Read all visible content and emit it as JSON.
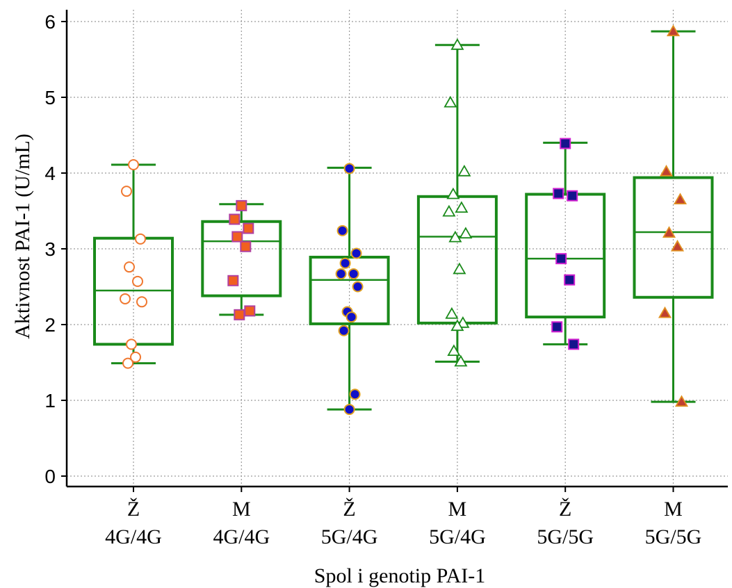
{
  "chart_data": {
    "type": "box",
    "xlabel": "Spol i genotip PAI-1",
    "ylabel": "Aktivnost PAI-1 (U/mL)",
    "ylim": [
      0,
      6
    ],
    "yticks": [
      "0",
      "1",
      "2",
      "3",
      "4",
      "5",
      "6"
    ],
    "grid": true,
    "box_color": "#1a8a1a",
    "groups": [
      {
        "sex": "Ž",
        "genotype": "4G/4G",
        "marker": "circle",
        "fill": "#ffffff",
        "stroke": "#f07830",
        "min": 1.49,
        "q1": 1.74,
        "median": 2.45,
        "q3": 3.14,
        "max": 4.11,
        "points": [
          4.11,
          3.76,
          3.13,
          2.76,
          2.57,
          2.34,
          2.3,
          1.74,
          1.57,
          1.49
        ]
      },
      {
        "sex": "M",
        "genotype": "4G/4G",
        "marker": "square",
        "fill": "#f06020",
        "stroke": "#b040a0",
        "min": 2.13,
        "q1": 2.38,
        "median": 3.1,
        "q3": 3.36,
        "max": 3.59,
        "points": [
          3.57,
          3.39,
          3.27,
          3.16,
          3.03,
          2.58,
          2.18,
          2.13
        ]
      },
      {
        "sex": "Ž",
        "genotype": "5G/4G",
        "marker": "circle",
        "fill": "#1010c8",
        "stroke": "#e0a020",
        "min": 0.88,
        "q1": 2.01,
        "median": 2.59,
        "q3": 2.89,
        "max": 4.07,
        "points": [
          4.06,
          3.24,
          2.94,
          2.81,
          2.67,
          2.67,
          2.5,
          2.17,
          2.1,
          1.92,
          1.08,
          0.88
        ]
      },
      {
        "sex": "M",
        "genotype": "5G/4G",
        "marker": "triangle",
        "fill": "#ffffff",
        "stroke": "#1a8a1a",
        "min": 1.51,
        "q1": 2.02,
        "median": 3.16,
        "q3": 3.69,
        "max": 5.69,
        "points": [
          5.69,
          4.93,
          4.02,
          3.72,
          3.54,
          3.49,
          3.2,
          3.15,
          2.73,
          2.14,
          2.02,
          1.98,
          1.65,
          1.51
        ]
      },
      {
        "sex": "Ž",
        "genotype": "5G/5G",
        "marker": "square",
        "fill": "#14148c",
        "stroke": "#d020d0",
        "min": 1.74,
        "q1": 2.1,
        "median": 2.87,
        "q3": 3.72,
        "max": 4.4,
        "points": [
          4.39,
          3.73,
          3.7,
          2.87,
          2.59,
          1.97,
          1.74
        ]
      },
      {
        "sex": "M",
        "genotype": "5G/5G",
        "marker": "triangle",
        "fill": "#c04030",
        "stroke": "#e09020",
        "min": 0.98,
        "q1": 2.36,
        "median": 3.22,
        "q3": 3.94,
        "max": 5.87,
        "points": [
          5.87,
          4.02,
          3.65,
          3.21,
          3.03,
          2.15,
          0.98
        ]
      }
    ]
  }
}
